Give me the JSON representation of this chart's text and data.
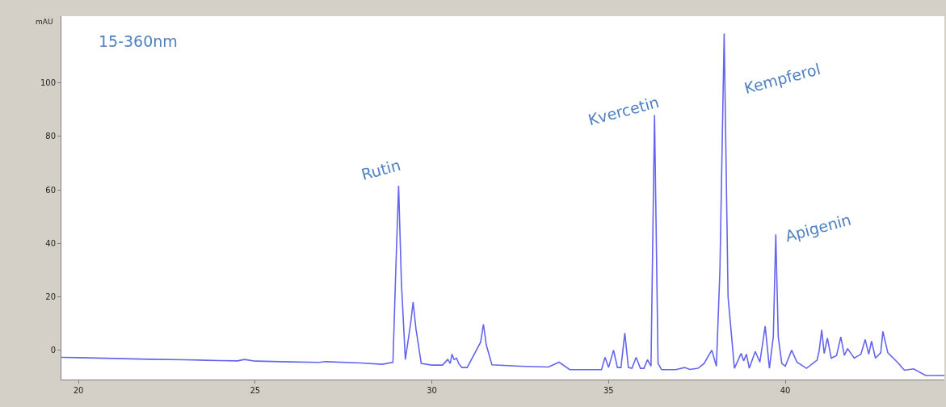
{
  "chart_data": {
    "type": "line",
    "ylabel": "mAU",
    "x": [
      19.52,
      20,
      21,
      22,
      23,
      24,
      24.5,
      24.7,
      25,
      26,
      26.8,
      27,
      28,
      28.6,
      28.9,
      28.98,
      29.06,
      29.14,
      29.25,
      29.4,
      29.47,
      29.55,
      29.7,
      30,
      30.3,
      30.45,
      30.52,
      30.57,
      30.63,
      30.7,
      30.76,
      30.85,
      31.0,
      31.38,
      31.46,
      31.54,
      31.7,
      32.5,
      33.3,
      33.6,
      33.9,
      34.5,
      34.8,
      34.9,
      35.0,
      35.14,
      35.25,
      35.35,
      35.46,
      35.56,
      35.66,
      35.78,
      35.9,
      36.0,
      36.1,
      36.2,
      36.3,
      36.4,
      36.5,
      36.9,
      37.15,
      37.3,
      37.53,
      37.7,
      37.92,
      38.05,
      38.15,
      38.27,
      38.38,
      38.56,
      38.75,
      38.82,
      38.9,
      38.98,
      39.15,
      39.28,
      39.43,
      39.55,
      39.66,
      39.73,
      39.8,
      39.9,
      40.0,
      40.18,
      40.33,
      40.6,
      40.9,
      40.96,
      41.03,
      41.1,
      41.19,
      41.3,
      41.45,
      41.57,
      41.67,
      41.76,
      41.95,
      42.14,
      42.26,
      42.36,
      42.44,
      42.55,
      42.7,
      42.76,
      42.9,
      43.17,
      43.37,
      43.63,
      43.97,
      44.5
    ],
    "series": [
      {
        "color": "#6464ee",
        "values": [
          -2.7,
          -2.8,
          -3.1,
          -3.4,
          -3.6,
          -3.9,
          -4.0,
          -3.5,
          -4.1,
          -4.4,
          -4.6,
          -4.3,
          -4.8,
          -5.3,
          -4.5,
          30,
          61.5,
          25,
          -3.5,
          10,
          18,
          8,
          -5,
          -5.6,
          -5.6,
          -3.5,
          -5,
          -1.5,
          -3.5,
          -3,
          -5,
          -6.5,
          -6.5,
          3,
          9.7,
          2,
          -5.5,
          -6,
          -6.3,
          -4.5,
          -7.3,
          -7.3,
          -7.3,
          -2.7,
          -6.5,
          0,
          -6.5,
          -6.5,
          6.4,
          -6.5,
          -6.8,
          -2.7,
          -6.8,
          -6.8,
          -3.6,
          -6,
          88,
          -5,
          -7.3,
          -7.3,
          -6.5,
          -7.2,
          -6.8,
          -5,
          0,
          -6,
          30,
          118.5,
          20,
          -6.8,
          -1.2,
          -4,
          -1.5,
          -6.8,
          -0.5,
          -4.5,
          9,
          -6.8,
          5,
          43.3,
          5,
          -5,
          -6,
          0,
          -4.5,
          -6.8,
          -3.7,
          0,
          7.6,
          -1.2,
          4.5,
          -3,
          -2,
          5,
          -2,
          0.6,
          -3,
          -1.5,
          4,
          -1.5,
          3.4,
          -3,
          -1,
          7,
          -1,
          -4.5,
          -7.5,
          -7,
          -9.5,
          -9.5
        ]
      }
    ],
    "xlim": [
      19.52,
      44.5
    ],
    "ylim": [
      -11,
      125
    ],
    "xticks": [
      20,
      25,
      30,
      35,
      40
    ],
    "yticks": [
      0,
      20,
      40,
      60,
      80,
      100
    ],
    "marker": "none",
    "line_style": "solid",
    "annotations": [
      "15-360nm",
      {
        "text": "Rutin",
        "x": 29.06,
        "y": 61.5
      },
      {
        "text": "Kvercetin",
        "x": 36.3,
        "y": 88
      },
      {
        "text": "Kempferol",
        "x": 38.27,
        "y": 118.5
      },
      {
        "text": "Apigenin",
        "x": 39.73,
        "y": 43.3
      }
    ]
  }
}
